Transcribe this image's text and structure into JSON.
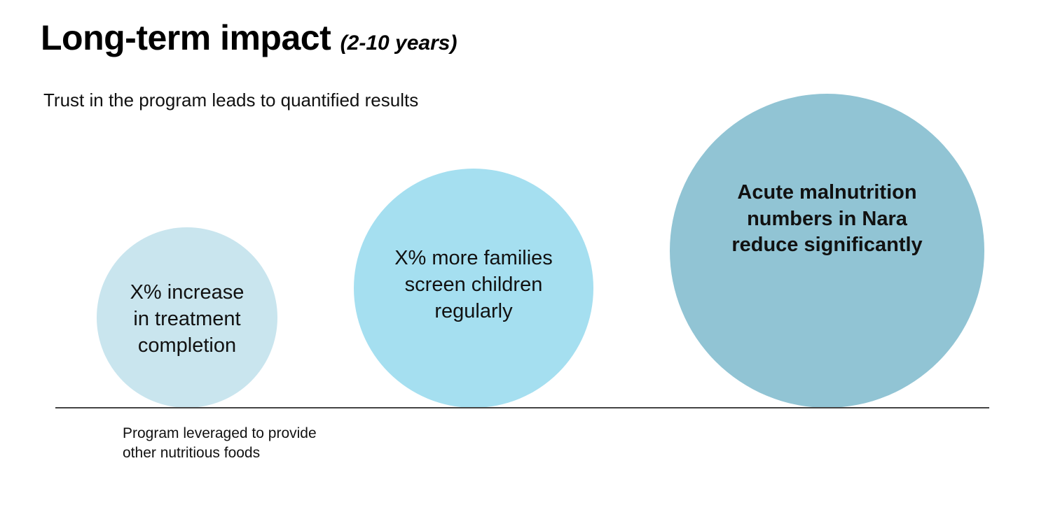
{
  "header": {
    "title": "Long-term impact",
    "title_qualifier": "(2-10 years)",
    "subtitle": "Trust in the program leads to quantified results"
  },
  "impacts": [
    {
      "label": "X% increase in treatment completion",
      "color": "#c9e5ee"
    },
    {
      "label": "X% more families screen children regularly",
      "color": "#a5dff0"
    },
    {
      "label": "Acute malnutrition numbers in Nara reduce significantly",
      "color": "#91c4d4"
    }
  ],
  "footnote": "Program leveraged to provide other nutritious foods",
  "colors": {
    "baseline": "#444444",
    "text": "#111111"
  }
}
